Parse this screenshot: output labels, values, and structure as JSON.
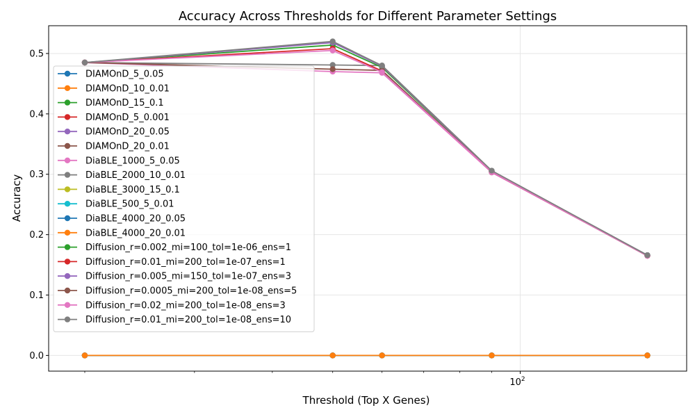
{
  "chart_data": {
    "type": "line",
    "title": "Accuracy Across Thresholds for Different Parameter Settings",
    "xlabel": "Threshold (Top X Genes)",
    "ylabel": "Accuracy",
    "x_scale": "log",
    "x": [
      20,
      50,
      60,
      90,
      160
    ],
    "xlim": [
      17.5,
      185
    ],
    "ylim": [
      -0.026,
      0.546
    ],
    "x_ticks": [
      {
        "value": 100,
        "label": "10",
        "exp": "2"
      }
    ],
    "y_ticks": [
      {
        "value": 0.0,
        "label": "0.0"
      },
      {
        "value": 0.1,
        "label": "0.1"
      },
      {
        "value": 0.2,
        "label": "0.2"
      },
      {
        "value": 0.3,
        "label": "0.3"
      },
      {
        "value": 0.4,
        "label": "0.4"
      },
      {
        "value": 0.5,
        "label": "0.5"
      }
    ],
    "grid": true,
    "legend_position": "center-left",
    "series": [
      {
        "name": "DIAMOnD_5_0.05",
        "color": "#1f77b4",
        "values": [
          0,
          0,
          0,
          0,
          0
        ]
      },
      {
        "name": "DIAMOnD_10_0.01",
        "color": "#ff7f0e",
        "values": [
          0,
          0,
          0,
          0,
          0
        ]
      },
      {
        "name": "DIAMOnD_15_0.1",
        "color": "#2ca02c",
        "values": [
          0,
          0,
          0,
          0,
          0
        ]
      },
      {
        "name": "DIAMOnD_5_0.001",
        "color": "#d62728",
        "values": [
          0,
          0,
          0,
          0,
          0
        ]
      },
      {
        "name": "DIAMOnD_20_0.05",
        "color": "#9467bd",
        "values": [
          0,
          0,
          0,
          0,
          0
        ]
      },
      {
        "name": "DIAMOnD_20_0.01",
        "color": "#8c564b",
        "values": [
          0,
          0,
          0,
          0,
          0
        ]
      },
      {
        "name": "DiaBLE_1000_5_0.05",
        "color": "#e377c2",
        "values": [
          0.485,
          0.47,
          0.468,
          0.303,
          0.165
        ]
      },
      {
        "name": "DiaBLE_2000_10_0.01",
        "color": "#7f7f7f",
        "values": [
          0.485,
          0.481,
          0.48,
          0.305,
          0.166
        ]
      },
      {
        "name": "DiaBLE_3000_15_0.1",
        "color": "#bcbd22",
        "values": [
          0,
          0,
          0,
          0,
          0
        ]
      },
      {
        "name": "DiaBLE_500_5_0.01",
        "color": "#17becf",
        "values": [
          0,
          0,
          0,
          0,
          0
        ]
      },
      {
        "name": "DiaBLE_4000_20_0.05",
        "color": "#1f77b4",
        "values": [
          0,
          0,
          0,
          0,
          0
        ]
      },
      {
        "name": "DiaBLE_4000_20_0.01",
        "color": "#ff7f0e",
        "values": [
          0,
          0,
          0,
          0,
          0
        ]
      },
      {
        "name": "Diffusion_r=0.002_mi=100_tol=1e-06_ens=1",
        "color": "#2ca02c",
        "values": [
          0.485,
          0.514,
          0.477,
          0.305,
          0.166
        ]
      },
      {
        "name": "Diffusion_r=0.01_mi=200_tol=1e-07_ens=1",
        "color": "#d62728",
        "values": [
          0.485,
          0.508,
          0.471,
          0.304,
          0.165
        ]
      },
      {
        "name": "Diffusion_r=0.005_mi=150_tol=1e-07_ens=3",
        "color": "#9467bd",
        "values": [
          0.485,
          0.518,
          0.479,
          0.305,
          0.166
        ]
      },
      {
        "name": "Diffusion_r=0.0005_mi=200_tol=1e-08_ens=5",
        "color": "#8c564b",
        "values": [
          0.485,
          0.474,
          0.472,
          0.304,
          0.165
        ]
      },
      {
        "name": "Diffusion_r=0.02_mi=200_tol=1e-08_ens=3",
        "color": "#e377c2",
        "values": [
          0.485,
          0.505,
          0.469,
          0.304,
          0.165
        ]
      },
      {
        "name": "Diffusion_r=0.01_mi=200_tol=1e-08_ens=10",
        "color": "#7f7f7f",
        "values": [
          0.485,
          0.52,
          0.48,
          0.306,
          0.166
        ]
      }
    ]
  }
}
